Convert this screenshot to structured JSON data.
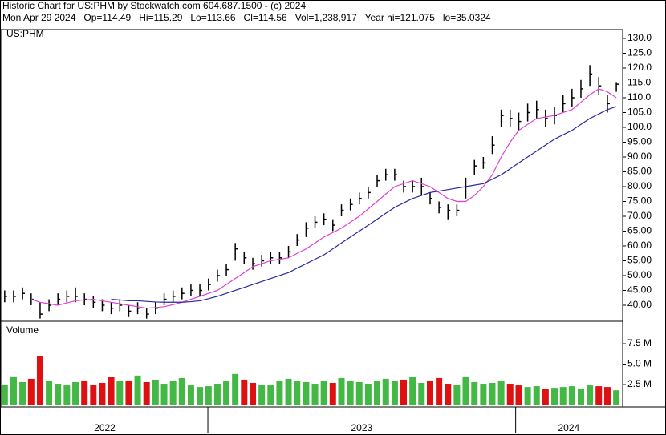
{
  "chart_data": [
    {
      "type": "ohlc",
      "title": "Historic Chart for US:PHM by Stockwatch.com 604.687.1500 - (c) 2024",
      "subtitle": "Mon Apr 29 2024   Op=114.49   Hi=115.29   Lo=113.66   Cl=114.56   Vol=1,238,917   Year hi=121.075   lo=35.0324",
      "label": "US:PHM",
      "color": "#000000",
      "x": [
        2022.34,
        2022.369,
        2022.398,
        2022.426,
        2022.455,
        2022.484,
        2022.513,
        2022.542,
        2022.57,
        2022.599,
        2022.628,
        2022.657,
        2022.686,
        2022.714,
        2022.743,
        2022.772,
        2022.801,
        2022.83,
        2022.858,
        2022.887,
        2022.916,
        2022.945,
        2022.974,
        2023.002,
        2023.031,
        2023.06,
        2023.089,
        2023.118,
        2023.146,
        2023.175,
        2023.204,
        2023.233,
        2023.262,
        2023.29,
        2023.319,
        2023.348,
        2023.377,
        2023.406,
        2023.434,
        2023.463,
        2023.492,
        2023.521,
        2023.55,
        2023.578,
        2023.607,
        2023.636,
        2023.665,
        2023.694,
        2023.722,
        2023.751,
        2023.78,
        2023.809,
        2023.838,
        2023.866,
        2023.895,
        2023.924,
        2023.953,
        2023.982,
        2024.01,
        2024.039,
        2024.068,
        2024.097,
        2024.126,
        2024.154,
        2024.183,
        2024.212,
        2024.241,
        2024.27,
        2024.298,
        2024.327
      ],
      "high": [
        45,
        45,
        46,
        44,
        41,
        42,
        44,
        45,
        46,
        44,
        43,
        42,
        41,
        42,
        40,
        41,
        39,
        41,
        44,
        45,
        46,
        47,
        47,
        49,
        52,
        54,
        61,
        58,
        56,
        57,
        58,
        58,
        60,
        64,
        68,
        70,
        71,
        69,
        74,
        76,
        78,
        80,
        84,
        86,
        86,
        82,
        82,
        83,
        78,
        75,
        74,
        74,
        83,
        89,
        90,
        97,
        106,
        106,
        105,
        108,
        109,
        106,
        107,
        111,
        113,
        116,
        121,
        117,
        111,
        115.29
      ],
      "low": [
        41,
        41,
        42,
        40,
        35.5,
        38,
        40,
        41,
        41,
        40,
        39,
        38,
        37,
        38,
        36,
        37,
        35.5,
        37,
        40,
        41,
        42,
        43,
        43,
        45,
        48,
        50,
        55,
        54,
        52,
        53,
        54,
        54,
        56,
        60,
        63,
        66,
        67,
        65,
        70,
        72,
        74,
        76,
        80,
        82,
        82,
        78,
        78,
        77,
        74,
        71,
        69,
        70,
        76,
        84,
        86,
        91,
        100,
        100,
        99,
        102,
        103,
        100,
        101,
        105,
        107,
        110,
        114,
        111,
        105,
        112
      ],
      "close": [
        43,
        43,
        44,
        42,
        37,
        40,
        42,
        43,
        43,
        42,
        41,
        40,
        39,
        40,
        38,
        39,
        37,
        39,
        42,
        43,
        44,
        45,
        45,
        47,
        50,
        52,
        59,
        56,
        54,
        55,
        56,
        56,
        58,
        62,
        66,
        68,
        69,
        67,
        72,
        74,
        76,
        78,
        82,
        84,
        84,
        80,
        80,
        80,
        76,
        73,
        72,
        72,
        80,
        87,
        88,
        94,
        104,
        103,
        102,
        105,
        106,
        103,
        104,
        108,
        110,
        113,
        118,
        114,
        108,
        114.56
      ],
      "lines": [
        {
          "color": "#e040d0",
          "values": [
            null,
            null,
            null,
            42,
            41,
            40.5,
            40,
            40.8,
            41.5,
            41.8,
            42,
            41.5,
            41,
            40.5,
            40,
            39.5,
            39,
            39.2,
            39.5,
            40.2,
            41,
            42,
            43,
            44,
            45,
            47,
            49,
            51,
            53,
            54,
            55,
            55.5,
            56,
            57.5,
            59,
            61,
            63,
            64.5,
            66,
            68,
            70,
            72.5,
            75,
            77.5,
            80,
            81,
            82,
            81,
            80,
            78,
            76,
            75,
            75,
            77,
            80,
            84,
            90,
            95,
            99,
            101,
            103,
            103.5,
            104,
            105,
            106,
            108.5,
            111,
            113,
            112,
            110
          ]
        },
        {
          "color": "#2828a0",
          "values": [
            null,
            null,
            null,
            null,
            null,
            null,
            null,
            null,
            null,
            null,
            null,
            null,
            42,
            41.8,
            41.5,
            41.5,
            41.3,
            41.1,
            41,
            41,
            41,
            41.2,
            41.5,
            42.2,
            43,
            44,
            45,
            46,
            47,
            48,
            49,
            50,
            51,
            52.5,
            54,
            55.5,
            57,
            59,
            61,
            63,
            65,
            67,
            69,
            71,
            73,
            74.5,
            76,
            77,
            78,
            78.5,
            79,
            79.5,
            80,
            80.5,
            81,
            82.5,
            84,
            86,
            88,
            90,
            92,
            94,
            96,
            97.5,
            99,
            101,
            103,
            104.5,
            106,
            107
          ]
        }
      ],
      "xlim": [
        2022.33,
        2024.345
      ],
      "xticks": [
        2023,
        2024
      ],
      "x_labels": [
        "2022",
        "2023",
        "2024"
      ],
      "ylim": [
        34.86,
        132.7
      ],
      "yticks": [
        {
          "value": 40,
          "label": "40.00"
        },
        {
          "value": 45,
          "label": "45.00"
        },
        {
          "value": 50,
          "label": "50.00"
        },
        {
          "value": 55,
          "label": "55.00"
        },
        {
          "value": 60,
          "label": "60.00"
        },
        {
          "value": 65,
          "label": "65.00"
        },
        {
          "value": 70,
          "label": "70.00"
        },
        {
          "value": 75,
          "label": "75.00"
        },
        {
          "value": 80,
          "label": "80.00"
        },
        {
          "value": 85,
          "label": "85.00"
        },
        {
          "value": 90,
          "label": "90.00"
        },
        {
          "value": 95,
          "label": "95.00"
        },
        {
          "value": 100,
          "label": "100.0"
        },
        {
          "value": 105,
          "label": "105.0"
        },
        {
          "value": 110,
          "label": "110.0"
        },
        {
          "value": 115,
          "label": "115.0"
        },
        {
          "value": 120,
          "label": "120.0"
        },
        {
          "value": 125,
          "label": "125.0"
        },
        {
          "value": 130,
          "label": "130.0"
        }
      ]
    },
    {
      "type": "bar",
      "label": "Volume",
      "up_color": "#44b844",
      "down_color": "#dd1111",
      "values": [
        2.5,
        3.5,
        2.8,
        3.2,
        6.0,
        3.0,
        2.6,
        2.4,
        2.8,
        3.0,
        2.5,
        2.7,
        3.4,
        2.9,
        3.0,
        3.6,
        2.8,
        3.1,
        2.6,
        2.9,
        3.3,
        2.4,
        2.2,
        2.3,
        2.6,
        2.9,
        3.8,
        3.1,
        2.7,
        2.5,
        2.4,
        3.0,
        3.2,
        2.9,
        2.8,
        2.6,
        3.0,
        2.7,
        3.3,
        3.0,
        2.8,
        2.6,
        2.9,
        3.2,
        2.9,
        3.1,
        3.4,
        2.7,
        3.0,
        3.3,
        2.6,
        2.5,
        3.5,
        2.8,
        2.6,
        2.7,
        3.0,
        2.6,
        2.4,
        2.2,
        2.3,
        2.0,
        2.1,
        2.2,
        2.3,
        2.0,
        2.4,
        2.3,
        2.2,
        1.8
      ],
      "ylim": [
        -0.24,
        10.15
      ],
      "yticks": [
        {
          "value": 2.5,
          "label": "2.5 M"
        },
        {
          "value": 5,
          "label": "5.0 M"
        },
        {
          "value": 7.5,
          "label": "7.5 M"
        }
      ]
    }
  ]
}
